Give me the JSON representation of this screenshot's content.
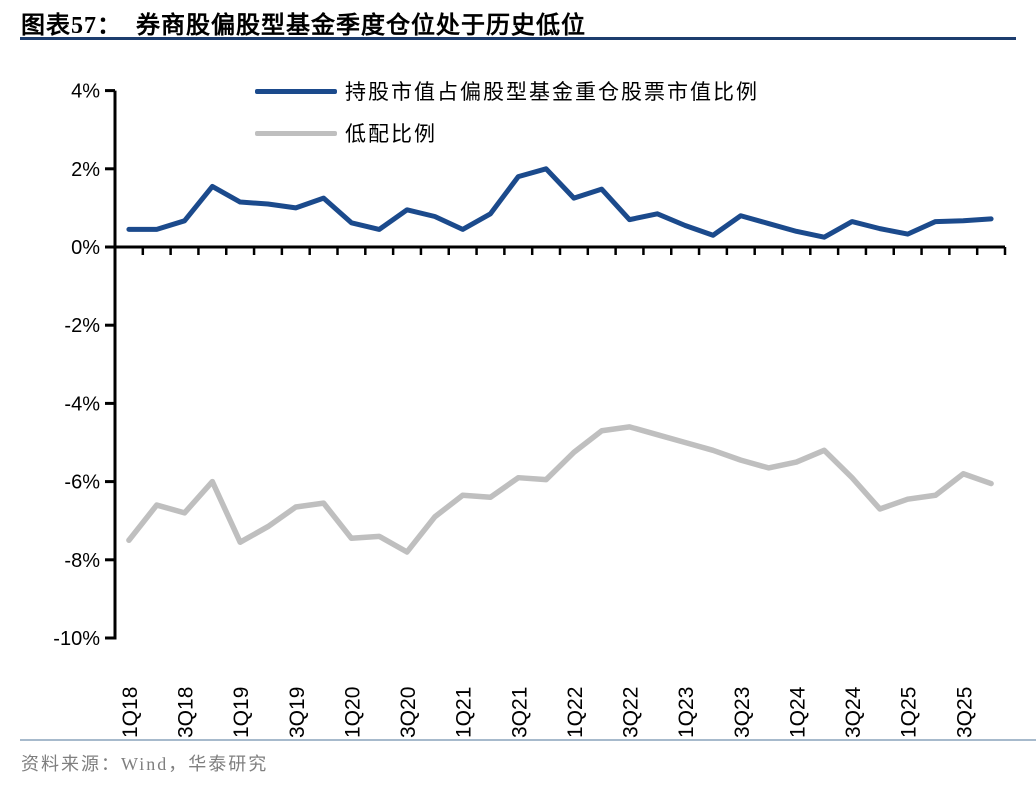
{
  "header": {
    "title_prefix": "图表57：",
    "title": "券商股偏股型基金季度仓位处于历史低位"
  },
  "footer": {
    "source": "资料来源：Wind，华泰研究"
  },
  "colors": {
    "primary_line": "#1b4a8c",
    "secondary_line": "#bfbfbf",
    "title_rule": "#1d3d6e",
    "footer_rule": "#a7bacc",
    "axis": "#000000",
    "source_text": "#7f7f7f"
  },
  "chart_data": {
    "type": "line",
    "title": "券商股偏股型基金季度仓位处于历史低位",
    "categories": [
      "1Q18",
      "2Q18",
      "3Q18",
      "4Q18",
      "1Q19",
      "2Q19",
      "3Q19",
      "4Q19",
      "1Q20",
      "2Q20",
      "3Q20",
      "4Q20",
      "1Q21",
      "2Q21",
      "3Q21",
      "4Q21",
      "1Q22",
      "2Q22",
      "3Q22",
      "4Q22",
      "1Q23",
      "2Q23",
      "3Q23",
      "4Q23",
      "1Q24",
      "2Q24",
      "3Q24",
      "4Q24",
      "1Q25",
      "2Q25",
      "3Q25",
      "4Q25"
    ],
    "x_tick_labels": [
      "1Q18",
      "3Q18",
      "1Q19",
      "3Q19",
      "1Q20",
      "3Q20",
      "1Q21",
      "3Q21",
      "1Q22",
      "3Q22",
      "1Q23",
      "3Q23",
      "1Q24",
      "3Q24",
      "1Q25",
      "3Q25"
    ],
    "x_label_interval": 2,
    "y_tick_labels": [
      "4%",
      "2%",
      "0%",
      "-2%",
      "-4%",
      "-6%",
      "-8%",
      "-10%"
    ],
    "y_tick_values": [
      4,
      2,
      0,
      -2,
      -4,
      -6,
      -8,
      -10
    ],
    "ylim": [
      -10,
      4
    ],
    "grid": false,
    "legend_position": "top-center",
    "series": [
      {
        "name": "持股市值占偏股型基金重仓股票市值比例",
        "color": "#1b4a8c",
        "values": [
          0.45,
          0.45,
          0.67,
          1.55,
          1.15,
          1.1,
          1.0,
          1.25,
          0.62,
          0.45,
          0.95,
          0.78,
          0.45,
          0.85,
          1.8,
          2.0,
          1.25,
          1.48,
          0.7,
          0.85,
          0.55,
          0.3,
          0.8,
          0.6,
          0.4,
          0.25,
          0.65,
          0.47,
          0.33,
          0.65,
          0.67,
          0.72
        ]
      },
      {
        "name": "低配比例",
        "color": "#bfbfbf",
        "values": [
          -7.5,
          -6.6,
          -6.8,
          -6.0,
          -7.55,
          -7.15,
          -6.65,
          -6.55,
          -7.45,
          -7.4,
          -7.8,
          -6.9,
          -6.35,
          -6.4,
          -5.9,
          -5.95,
          -5.25,
          -4.7,
          -4.6,
          -4.8,
          -5.0,
          -5.2,
          -5.45,
          -5.65,
          -5.5,
          -5.2,
          -5.9,
          -6.7,
          -6.45,
          -6.35,
          -5.8,
          -6.05
        ]
      }
    ]
  }
}
